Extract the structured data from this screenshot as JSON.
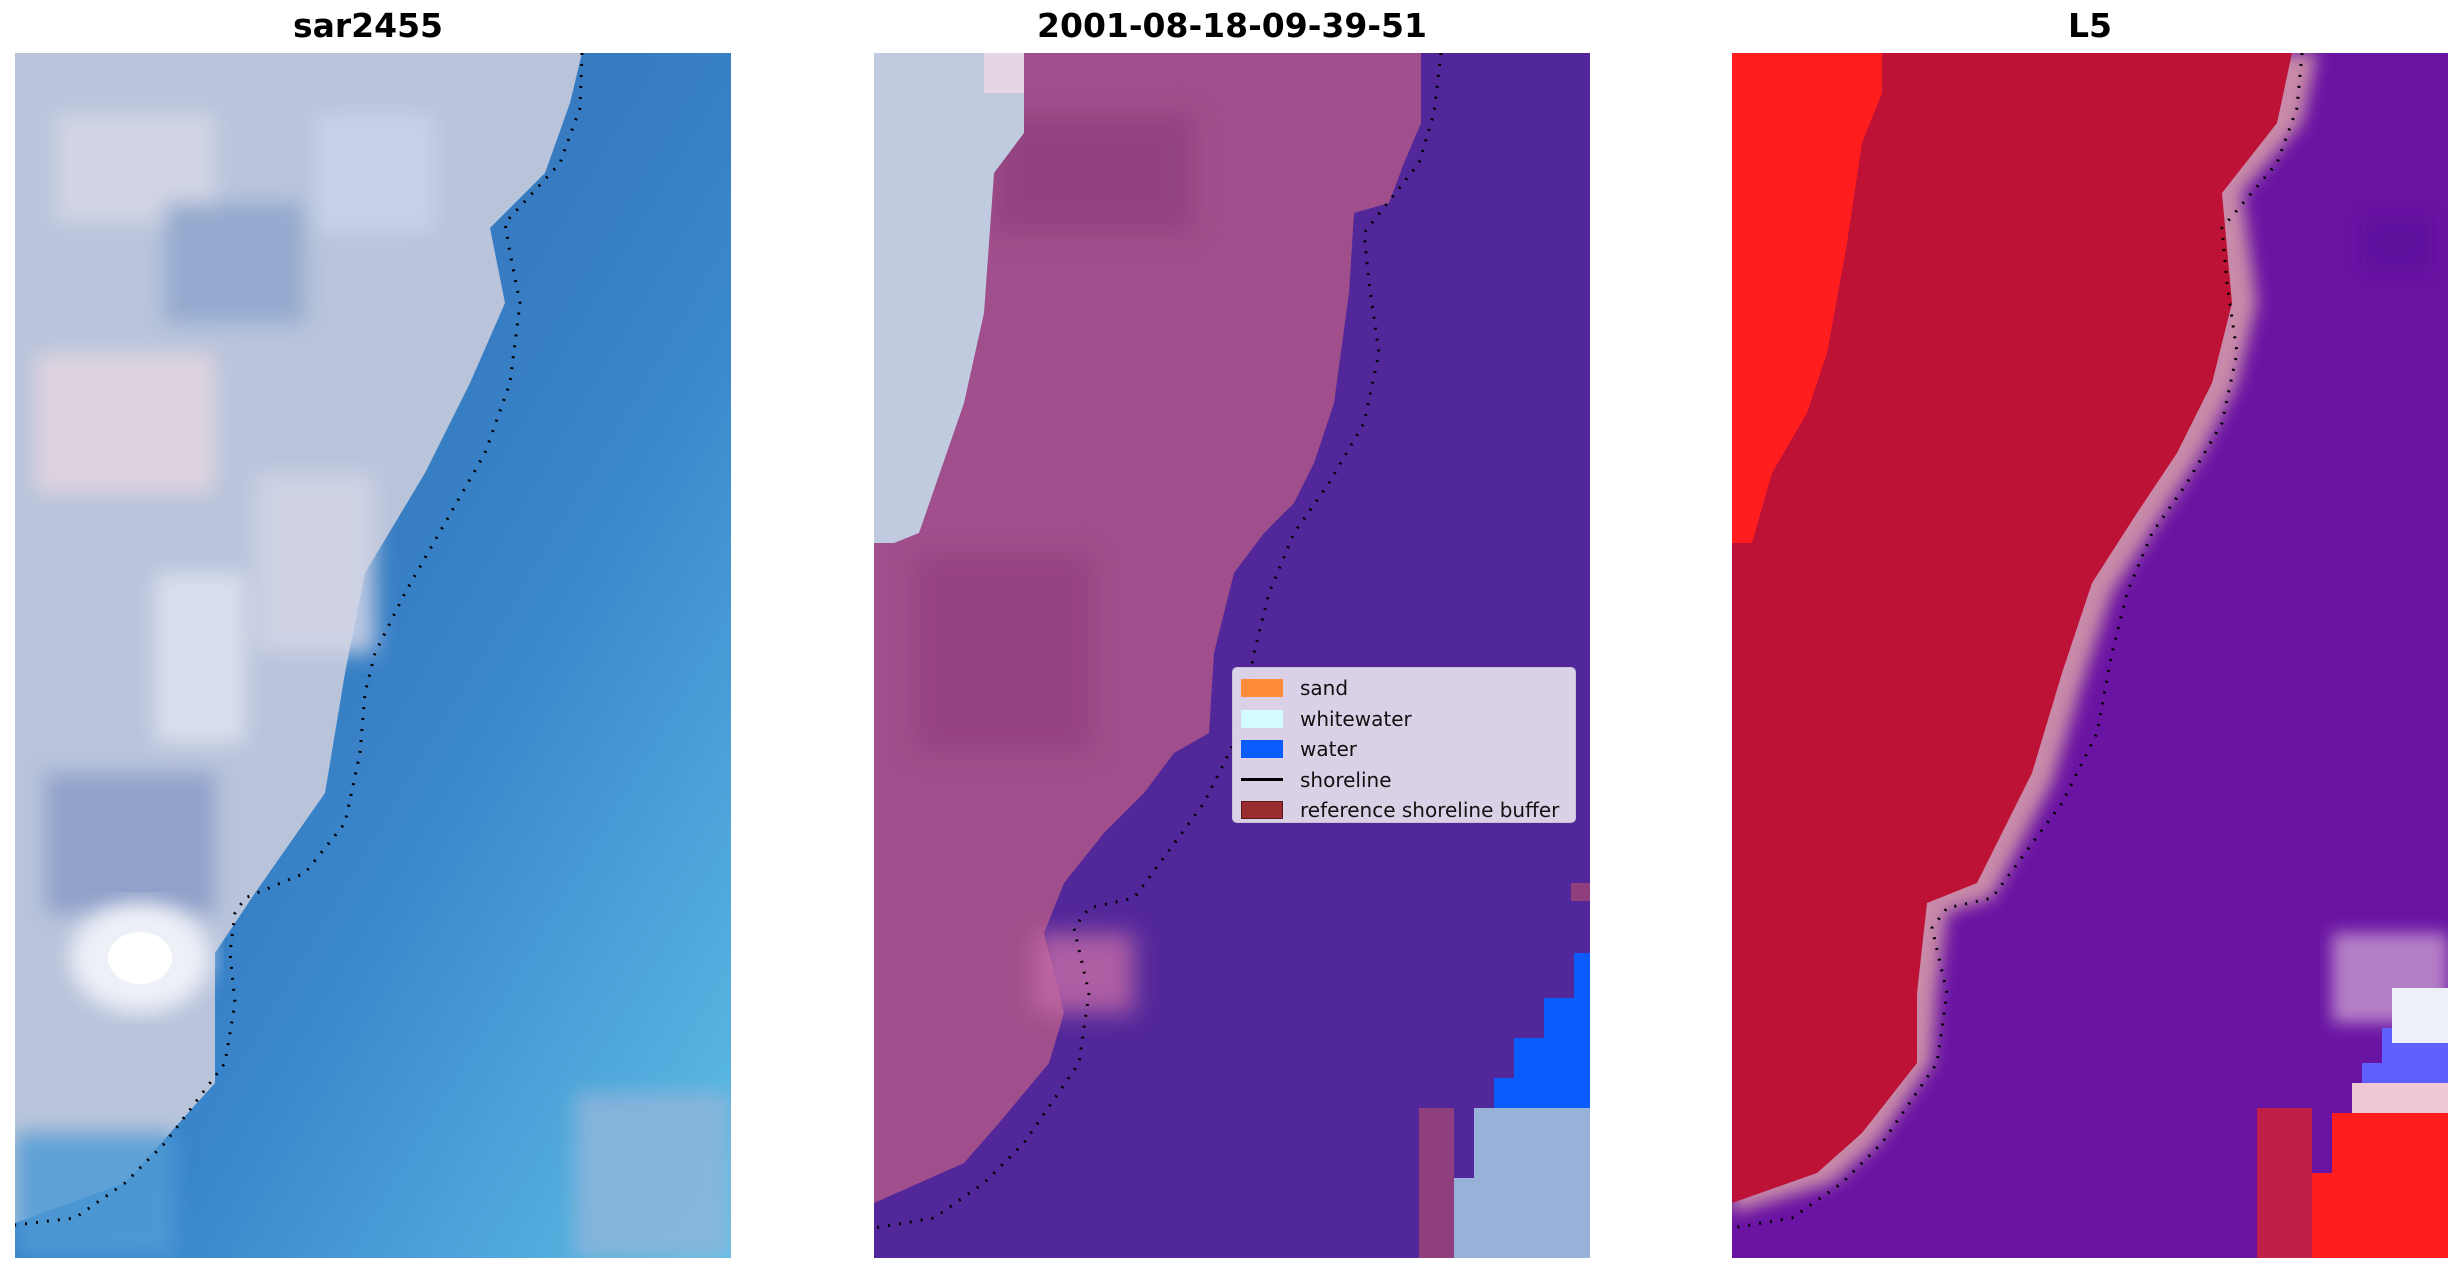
{
  "panels": [
    {
      "title": "sar2455"
    },
    {
      "title": "2001-08-18-09-39-51"
    },
    {
      "title": "L5"
    }
  ],
  "legend": {
    "items": [
      {
        "label": "sand",
        "color": "#ff8c3a",
        "kind": "patch"
      },
      {
        "label": "whitewater",
        "color": "#d4fbff",
        "kind": "patch"
      },
      {
        "label": "water",
        "color": "#0a5cff",
        "kind": "patch"
      },
      {
        "label": "shoreline",
        "color": "#000000",
        "kind": "line"
      },
      {
        "label": "reference shoreline buffer",
        "color": "#9a2b2f",
        "kind": "patch"
      }
    ]
  },
  "colors": {
    "rgb_sand": "#bcc6dc",
    "rgb_water": "#3b6fb2",
    "class_land": "#a14f8c",
    "class_water": "#52279a",
    "class_water_blue": "#0a5cff",
    "index_land": "#bd1136",
    "index_bright": "#ff1d1d",
    "index_water": "#6a14a3"
  }
}
